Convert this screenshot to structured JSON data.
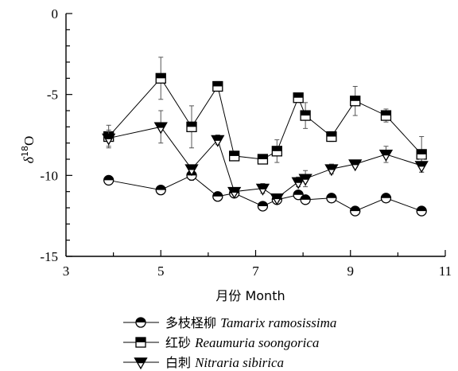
{
  "chart_data": {
    "type": "line",
    "xlabel": "月份 Month",
    "ylabel_symbol": "δ",
    "ylabel_sup": "18",
    "ylabel_rest": "O",
    "xlim": [
      3,
      11
    ],
    "ylim": [
      -15,
      0
    ],
    "xticks": [
      3,
      5,
      7,
      9,
      11
    ],
    "yticks": [
      0,
      -5,
      -10,
      -15
    ],
    "legend_position": "bottom",
    "series": [
      {
        "name_cn": "多枝柽柳",
        "name_latin": "Tamarix ramosissima",
        "marker": "half-circle",
        "points": [
          {
            "x": 3.9,
            "y": -10.3,
            "err": 0.2
          },
          {
            "x": 5.0,
            "y": -10.9,
            "err": 0.15
          },
          {
            "x": 5.65,
            "y": -10.0,
            "err": 0.3
          },
          {
            "x": 6.2,
            "y": -11.3,
            "err": 0.15
          },
          {
            "x": 6.55,
            "y": -11.1,
            "err": 0.15
          },
          {
            "x": 7.15,
            "y": -11.9,
            "err": 0.2
          },
          {
            "x": 7.45,
            "y": -11.5,
            "err": 0.2
          },
          {
            "x": 7.9,
            "y": -11.2,
            "err": 0.2
          },
          {
            "x": 8.05,
            "y": -11.5,
            "err": 0.2
          },
          {
            "x": 8.6,
            "y": -11.4,
            "err": 0.2
          },
          {
            "x": 9.1,
            "y": -12.2,
            "err": 0.2
          },
          {
            "x": 9.75,
            "y": -11.4,
            "err": 0.15
          },
          {
            "x": 10.5,
            "y": -12.2,
            "err": 0.2
          }
        ]
      },
      {
        "name_cn": "红砂",
        "name_latin": "Reaumuria soongorica",
        "marker": "half-square",
        "points": [
          {
            "x": 3.9,
            "y": -7.6,
            "err": 0.7
          },
          {
            "x": 5.0,
            "y": -4.0,
            "err": 1.3
          },
          {
            "x": 5.65,
            "y": -7.0,
            "err": 1.3
          },
          {
            "x": 6.2,
            "y": -4.5,
            "err": 0.3
          },
          {
            "x": 6.55,
            "y": -8.8,
            "err": 0.2
          },
          {
            "x": 7.15,
            "y": -9.0,
            "err": 0.2
          },
          {
            "x": 7.45,
            "y": -8.5,
            "err": 0.7
          },
          {
            "x": 7.9,
            "y": -5.2,
            "err": 0.2
          },
          {
            "x": 8.05,
            "y": -6.3,
            "err": 0.8
          },
          {
            "x": 8.6,
            "y": -7.6,
            "err": 0.3
          },
          {
            "x": 9.1,
            "y": -5.4,
            "err": 0.9
          },
          {
            "x": 9.75,
            "y": -6.3,
            "err": 0.4
          },
          {
            "x": 10.5,
            "y": -8.7,
            "err": 1.1
          }
        ]
      },
      {
        "name_cn": "白刺",
        "name_latin": "Nitraria sibirica",
        "marker": "half-triangle-down",
        "points": [
          {
            "x": 3.9,
            "y": -7.7,
            "err": 0.5
          },
          {
            "x": 5.0,
            "y": -7.0,
            "err": 1.0
          },
          {
            "x": 5.65,
            "y": -9.6,
            "err": 0.2
          },
          {
            "x": 6.2,
            "y": -7.8,
            "err": 0.3
          },
          {
            "x": 6.55,
            "y": -11.0,
            "err": 0.2
          },
          {
            "x": 7.15,
            "y": -10.8,
            "err": 0.3
          },
          {
            "x": 7.45,
            "y": -11.4,
            "err": 0.2
          },
          {
            "x": 7.9,
            "y": -10.4,
            "err": 0.3
          },
          {
            "x": 8.05,
            "y": -10.2,
            "err": 0.5
          },
          {
            "x": 8.6,
            "y": -9.6,
            "err": 0.3
          },
          {
            "x": 9.1,
            "y": -9.3,
            "err": 0.2
          },
          {
            "x": 9.75,
            "y": -8.7,
            "err": 0.5
          },
          {
            "x": 10.5,
            "y": -9.4,
            "err": 0.4
          }
        ]
      }
    ]
  }
}
